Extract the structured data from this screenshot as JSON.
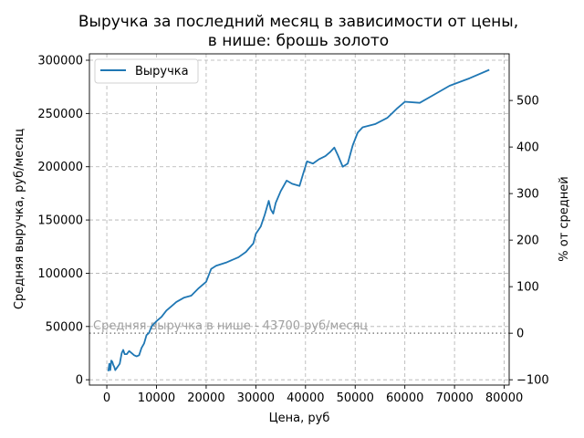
{
  "chart_data": {
    "type": "line",
    "title_line1": "Выручка за последний месяц в зависимости от цены,",
    "title_line2": "в нише: брошь золото",
    "xlabel": "Цена, руб",
    "ylabel": "Средняя выручка, руб/месяц",
    "y2label": "% от средней",
    "xlim": [
      -3500,
      81000
    ],
    "ylim": [
      -5000,
      306000
    ],
    "y2lim": [
      -111.4,
      600.2
    ],
    "x_ticks": [
      0,
      10000,
      20000,
      30000,
      40000,
      50000,
      60000,
      70000,
      80000
    ],
    "y_ticks": [
      0,
      50000,
      100000,
      150000,
      200000,
      250000,
      300000
    ],
    "y2_ticks": [
      -100,
      0,
      100,
      200,
      300,
      400,
      500
    ],
    "grid": true,
    "legend_position": "upper-left",
    "line_color": "#1f77b4",
    "avg_color": "#808080",
    "average": {
      "value": 43700,
      "label": "Средняя выручка в нише - 43700 руб/месяц"
    },
    "series": [
      {
        "name": "Выручка",
        "x": [
          300,
          500,
          700,
          900,
          1100,
          1300,
          1500,
          1700,
          2000,
          2300,
          2600,
          3000,
          3300,
          3600,
          4000,
          4500,
          5000,
          5500,
          6000,
          6500,
          7000,
          7500,
          8000,
          8500,
          9000,
          10000,
          11000,
          12000,
          13000,
          14000,
          15500,
          17000,
          18500,
          20000,
          21000,
          22000,
          24000,
          26500,
          28000,
          29500,
          30000,
          31000,
          31800,
          32600,
          33000,
          33500,
          34000,
          35000,
          36200,
          37300,
          38800,
          39500,
          40300,
          41500,
          42700,
          44000,
          45000,
          45800,
          46500,
          47500,
          48500,
          49500,
          50500,
          51500,
          54000,
          56500,
          58500,
          60000,
          63000,
          66000,
          69000,
          73000,
          77000
        ],
        "y": [
          8000,
          15000,
          9000,
          18000,
          17000,
          14000,
          12000,
          9000,
          11000,
          13000,
          15000,
          25000,
          28000,
          24000,
          24000,
          27000,
          25000,
          23000,
          22000,
          23000,
          30000,
          34000,
          42000,
          44000,
          50000,
          55000,
          59000,
          65000,
          69000,
          73000,
          77000,
          79000,
          86000,
          92000,
          104000,
          107000,
          110000,
          115000,
          120000,
          128000,
          137000,
          144000,
          155000,
          168000,
          160000,
          156000,
          166000,
          177000,
          187000,
          184000,
          182000,
          193000,
          205000,
          203000,
          207000,
          210000,
          214000,
          218000,
          211000,
          200000,
          203000,
          220000,
          232000,
          237000,
          240000,
          246000,
          255000,
          261000,
          260000,
          268000,
          276000,
          283000,
          291000
        ]
      }
    ]
  }
}
